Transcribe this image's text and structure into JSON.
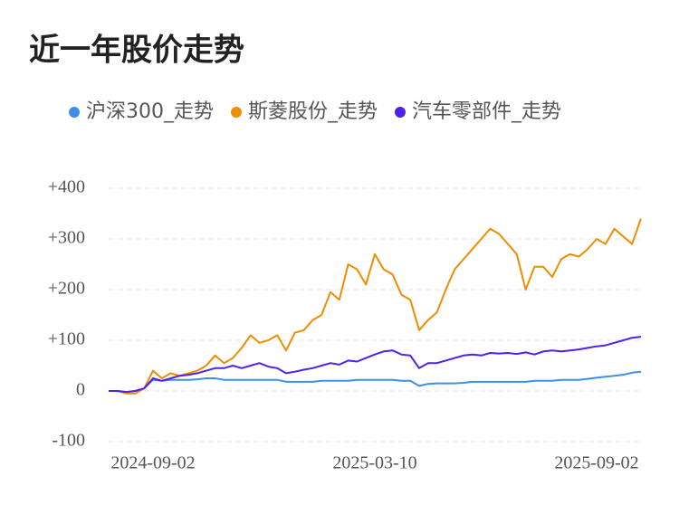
{
  "chart_data": {
    "type": "line",
    "title": "近一年股价走势",
    "categories": [
      null,
      null,
      null,
      null,
      null,
      "2024-09-02",
      null,
      null,
      null,
      null,
      null,
      null,
      null,
      null,
      null,
      null,
      null,
      null,
      null,
      null,
      null,
      null,
      null,
      null,
      null,
      null,
      null,
      null,
      null,
      null,
      "2025-03-10",
      null,
      null,
      null,
      null,
      null,
      null,
      null,
      null,
      null,
      null,
      null,
      null,
      null,
      null,
      null,
      null,
      null,
      null,
      null,
      null,
      null,
      null,
      null,
      null,
      "2025-09-02",
      null,
      null,
      null,
      null,
      null
    ],
    "series": [
      {
        "name": "沪深300_走势",
        "color": "#3d8fe8",
        "values": [
          0,
          0,
          -2,
          0,
          5,
          22,
          20,
          22,
          22,
          22,
          23,
          25,
          25,
          22,
          22,
          22,
          22,
          22,
          22,
          22,
          18,
          18,
          18,
          18,
          20,
          20,
          20,
          20,
          22,
          22,
          22,
          22,
          22,
          20,
          20,
          10,
          14,
          15,
          15,
          15,
          16,
          18,
          18,
          18,
          18,
          18,
          18,
          18,
          20,
          20,
          20,
          22,
          22,
          22,
          24,
          26,
          28,
          30,
          32,
          36,
          38
        ]
      },
      {
        "name": "斯菱股份_走势",
        "color": "#ef8c00",
        "values": [
          0,
          0,
          -5,
          -5,
          5,
          40,
          25,
          35,
          30,
          35,
          40,
          50,
          70,
          55,
          65,
          85,
          110,
          95,
          100,
          110,
          80,
          115,
          120,
          140,
          150,
          195,
          180,
          250,
          240,
          210,
          270,
          240,
          230,
          190,
          180,
          120,
          140,
          155,
          200,
          240,
          260,
          280,
          300,
          320,
          310,
          290,
          270,
          200,
          245,
          245,
          225,
          260,
          270,
          265,
          280,
          300,
          290,
          320,
          305,
          290,
          340
        ]
      },
      {
        "name": "汽车零部件_走势",
        "color": "#5021e8",
        "values": [
          0,
          0,
          -2,
          0,
          5,
          25,
          20,
          25,
          30,
          32,
          35,
          40,
          45,
          45,
          50,
          45,
          50,
          55,
          48,
          45,
          35,
          38,
          42,
          45,
          50,
          55,
          52,
          60,
          58,
          65,
          72,
          78,
          80,
          72,
          70,
          45,
          55,
          55,
          60,
          65,
          70,
          72,
          70,
          75,
          74,
          75,
          73,
          76,
          72,
          78,
          80,
          78,
          80,
          82,
          85,
          88,
          90,
          95,
          100,
          105,
          107
        ]
      }
    ],
    "ylim": [
      -100,
      400
    ],
    "yticks": [
      -100,
      0,
      {
        "value": 100,
        "label": "+100"
      },
      {
        "value": 200,
        "label": "+200"
      },
      {
        "value": 300,
        "label": "+300"
      },
      {
        "value": 400,
        "label": "+400"
      }
    ],
    "grid": true
  }
}
